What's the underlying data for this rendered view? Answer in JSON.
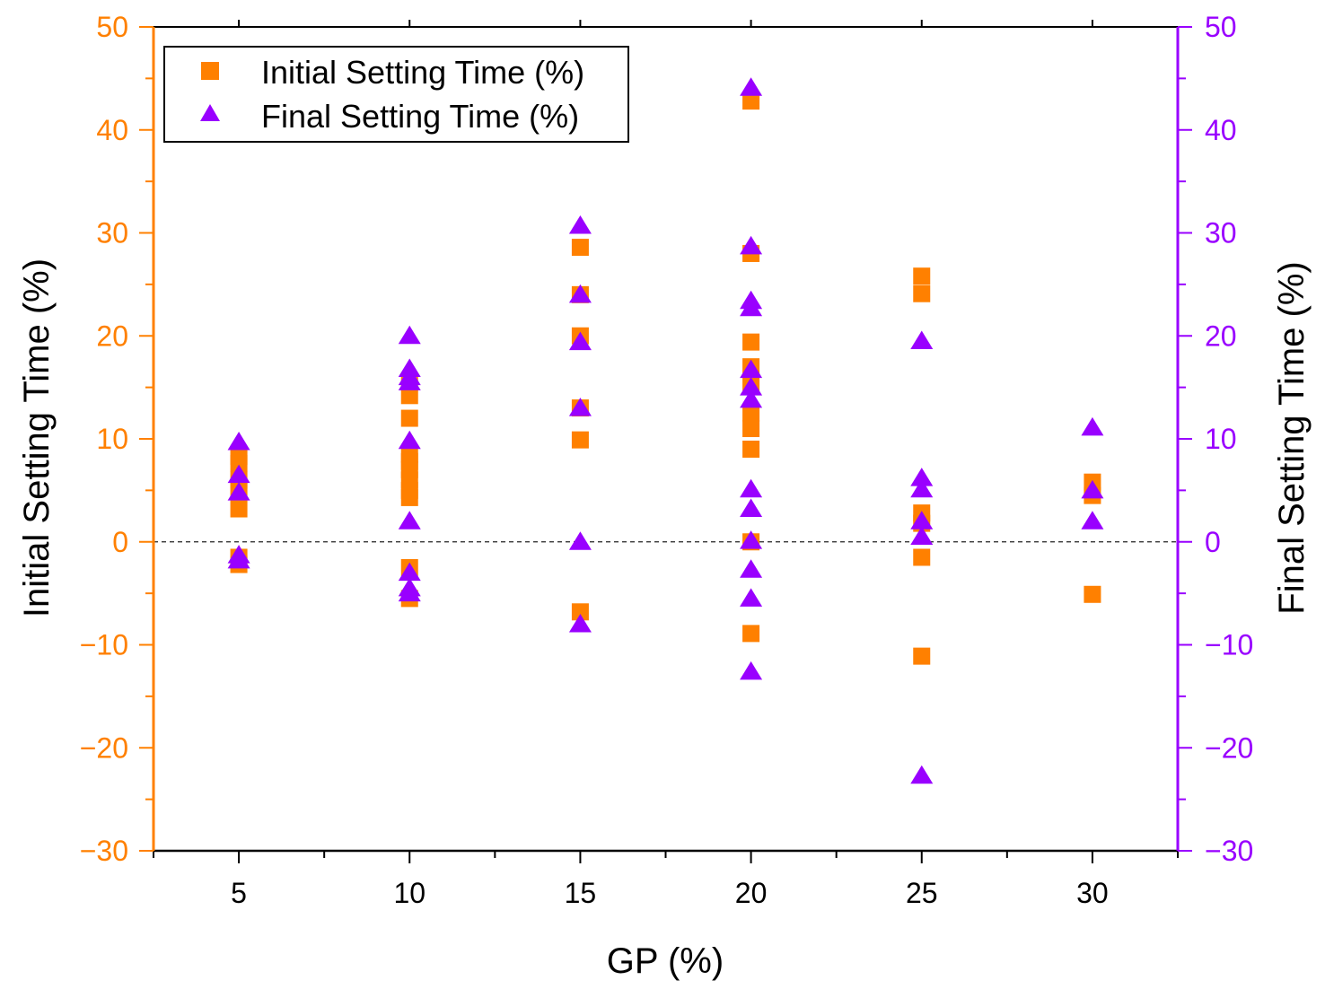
{
  "chart_data": {
    "type": "scatter",
    "title": "",
    "xlabel": "GP (%)",
    "ylabel_left": "Initial Setting Time (%)",
    "ylabel_right": "Final Setting Time (%)",
    "xlim": [
      2.5,
      32.5
    ],
    "ylim": [
      -30,
      50
    ],
    "xticks": [
      5,
      10,
      15,
      20,
      25,
      30
    ],
    "yticks": [
      -30,
      -20,
      -10,
      0,
      10,
      20,
      30,
      40,
      50
    ],
    "xtick_labels": [
      "5",
      "10",
      "15",
      "20",
      "25",
      "30"
    ],
    "ytick_labels": [
      "−30",
      "−20",
      "−10",
      "0",
      "10",
      "20",
      "30",
      "40",
      "50"
    ],
    "reference_line": {
      "y": 0,
      "style": "dashed"
    },
    "legend_position": "top-left",
    "series": [
      {
        "name": "Initial Setting Time (%)",
        "marker": "square",
        "color": "#ff8000",
        "axis": "left",
        "points": [
          {
            "x": 5,
            "y": 8.3
          },
          {
            "x": 5,
            "y": 7.6
          },
          {
            "x": 5,
            "y": 6.0
          },
          {
            "x": 5,
            "y": 5.2
          },
          {
            "x": 5,
            "y": 3.2
          },
          {
            "x": 5,
            "y": -1.5
          },
          {
            "x": 5,
            "y": -2.2
          },
          {
            "x": 10,
            "y": 15.5
          },
          {
            "x": 10,
            "y": 14.2
          },
          {
            "x": 10,
            "y": 12.0
          },
          {
            "x": 10,
            "y": 8.5
          },
          {
            "x": 10,
            "y": 7.8
          },
          {
            "x": 10,
            "y": 7.0
          },
          {
            "x": 10,
            "y": 6.0
          },
          {
            "x": 10,
            "y": 5.0
          },
          {
            "x": 10,
            "y": 4.3
          },
          {
            "x": 10,
            "y": -2.5
          },
          {
            "x": 10,
            "y": -5.5
          },
          {
            "x": 15,
            "y": 28.6
          },
          {
            "x": 15,
            "y": 24.0
          },
          {
            "x": 15,
            "y": 20.0
          },
          {
            "x": 15,
            "y": 13.0
          },
          {
            "x": 15,
            "y": 9.9
          },
          {
            "x": 15,
            "y": -6.8
          },
          {
            "x": 20,
            "y": 42.8
          },
          {
            "x": 20,
            "y": 28.0
          },
          {
            "x": 20,
            "y": 19.4
          },
          {
            "x": 20,
            "y": 17.0
          },
          {
            "x": 20,
            "y": 15.5
          },
          {
            "x": 20,
            "y": 12.5
          },
          {
            "x": 20,
            "y": 11.0
          },
          {
            "x": 20,
            "y": 9.0
          },
          {
            "x": 20,
            "y": 0.0
          },
          {
            "x": 20,
            "y": -8.9
          },
          {
            "x": 25,
            "y": 25.8
          },
          {
            "x": 25,
            "y": 24.1
          },
          {
            "x": 25,
            "y": 2.8
          },
          {
            "x": 25,
            "y": 1.8
          },
          {
            "x": 25,
            "y": -1.5
          },
          {
            "x": 25,
            "y": -11.1
          },
          {
            "x": 30,
            "y": 5.8
          },
          {
            "x": 30,
            "y": 4.5
          },
          {
            "x": 30,
            "y": -5.1
          }
        ]
      },
      {
        "name": "Final Setting Time (%)",
        "marker": "triangle",
        "color": "#9900ff",
        "axis": "right",
        "points": [
          {
            "x": 5,
            "y": 9.7
          },
          {
            "x": 5,
            "y": 6.5
          },
          {
            "x": 5,
            "y": 4.8
          },
          {
            "x": 5,
            "y": -1.3
          },
          {
            "x": 5,
            "y": -1.8
          },
          {
            "x": 10,
            "y": 20.0
          },
          {
            "x": 10,
            "y": 16.8
          },
          {
            "x": 10,
            "y": 16.0
          },
          {
            "x": 10,
            "y": 15.5
          },
          {
            "x": 10,
            "y": 9.8
          },
          {
            "x": 10,
            "y": 2.0
          },
          {
            "x": 10,
            "y": -3.0
          },
          {
            "x": 10,
            "y": -4.5
          },
          {
            "x": 10,
            "y": -5.0
          },
          {
            "x": 15,
            "y": 30.7
          },
          {
            "x": 15,
            "y": 24.0
          },
          {
            "x": 15,
            "y": 19.4
          },
          {
            "x": 15,
            "y": 13.0
          },
          {
            "x": 15,
            "y": 0.0
          },
          {
            "x": 15,
            "y": -8.0
          },
          {
            "x": 20,
            "y": 44.1
          },
          {
            "x": 20,
            "y": 28.7
          },
          {
            "x": 20,
            "y": 23.4
          },
          {
            "x": 20,
            "y": 22.7
          },
          {
            "x": 20,
            "y": 16.7
          },
          {
            "x": 20,
            "y": 15.0
          },
          {
            "x": 20,
            "y": 13.8
          },
          {
            "x": 20,
            "y": 5.1
          },
          {
            "x": 20,
            "y": 3.2
          },
          {
            "x": 20,
            "y": 0.1
          },
          {
            "x": 20,
            "y": -2.7
          },
          {
            "x": 20,
            "y": -5.5
          },
          {
            "x": 20,
            "y": -12.6
          },
          {
            "x": 25,
            "y": 19.5
          },
          {
            "x": 25,
            "y": 6.2
          },
          {
            "x": 25,
            "y": 5.1
          },
          {
            "x": 25,
            "y": 2.0
          },
          {
            "x": 25,
            "y": 0.5
          },
          {
            "x": 25,
            "y": -22.7
          },
          {
            "x": 30,
            "y": 11.1
          },
          {
            "x": 30,
            "y": 5.0
          },
          {
            "x": 30,
            "y": 2.0
          }
        ]
      }
    ]
  },
  "colors": {
    "left_axis": "#ff8000",
    "right_axis": "#9900ff",
    "frame": "#000000"
  }
}
